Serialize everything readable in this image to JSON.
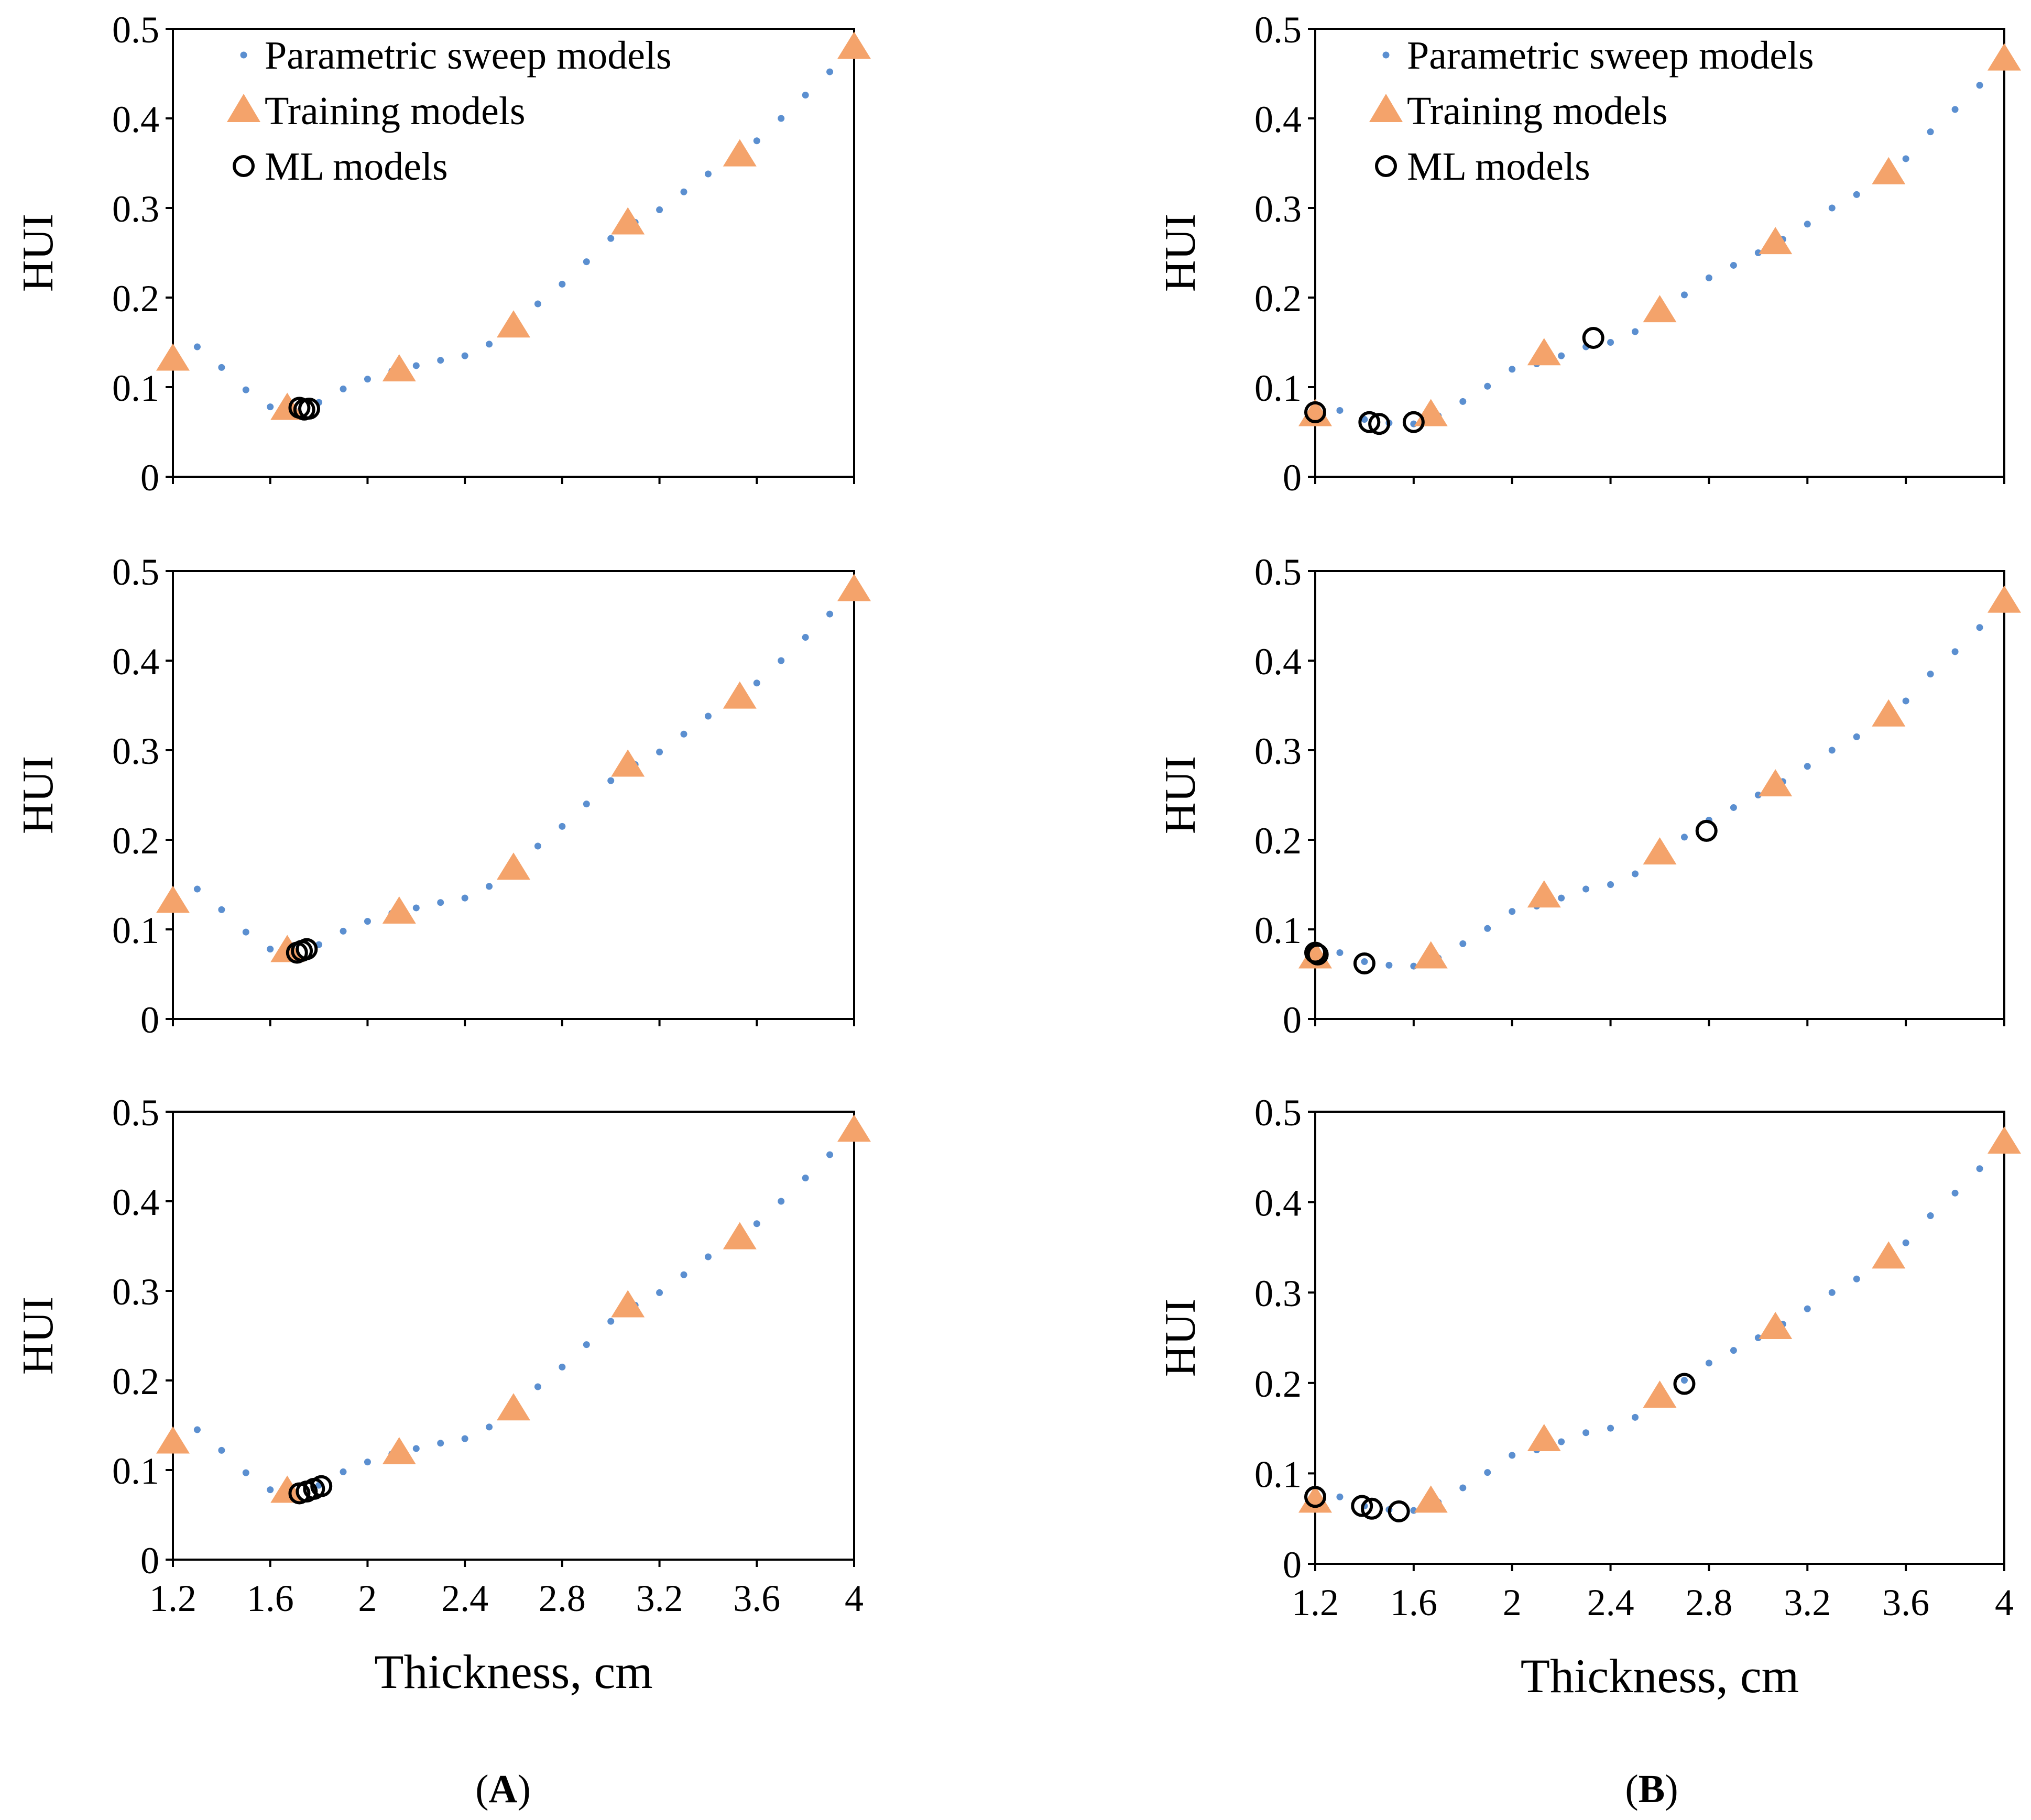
{
  "figure": {
    "panel_labels": [
      {
        "open": "(",
        "letter": "A",
        "close": ")"
      },
      {
        "open": "(",
        "letter": "B",
        "close": ")"
      }
    ]
  },
  "colors": {
    "sweep": "#5b8fd0",
    "training": "#f4a36b",
    "ml": "#000000",
    "axis": "#000000"
  },
  "chart_data": [
    {
      "type": "scatter",
      "panel": "A1",
      "ylabel": "HUI",
      "xlabel": "",
      "xlim": [
        1.2,
        4
      ],
      "ylim": [
        0,
        0.5
      ],
      "xticks": [
        "1.2",
        "1.6",
        "2",
        "2.4",
        "2.8",
        "3.2",
        "3.6",
        "4"
      ],
      "show_xticks": false,
      "yticks": [
        "0",
        "0.1",
        "0.2",
        "0.3",
        "0.4",
        "0.5"
      ],
      "legend": {
        "position": "top-left",
        "entries": [
          "Parametric sweep models",
          "Training models",
          "ML models"
        ]
      },
      "series": [
        {
          "name": "Parametric sweep models",
          "marker": "dot",
          "x": [
            1.2,
            1.3,
            1.4,
            1.5,
            1.6,
            1.7,
            1.8,
            1.9,
            2.0,
            2.1,
            2.2,
            2.3,
            2.4,
            2.5,
            2.6,
            2.7,
            2.8,
            2.9,
            3.0,
            3.1,
            3.2,
            3.3,
            3.4,
            3.5,
            3.6,
            3.7,
            3.8,
            3.9,
            4.0
          ],
          "y": [
            0.13,
            0.145,
            0.122,
            0.097,
            0.078,
            0.074,
            0.083,
            0.098,
            0.109,
            0.118,
            0.124,
            0.13,
            0.135,
            0.148,
            0.17,
            0.193,
            0.215,
            0.24,
            0.266,
            0.284,
            0.298,
            0.318,
            0.338,
            0.355,
            0.375,
            0.4,
            0.426,
            0.452,
            0.478
          ]
        },
        {
          "name": "Training models",
          "marker": "triangle",
          "x": [
            1.2,
            1.67,
            2.13,
            2.6,
            3.07,
            3.53,
            4.0
          ],
          "y": [
            0.13,
            0.075,
            0.118,
            0.167,
            0.282,
            0.358,
            0.478
          ]
        },
        {
          "name": "ML models",
          "marker": "circle",
          "x": [
            1.72,
            1.74,
            1.76
          ],
          "y": [
            0.077,
            0.075,
            0.076
          ]
        }
      ]
    },
    {
      "type": "scatter",
      "panel": "B1",
      "ylabel": "HUI",
      "xlabel": "",
      "xlim": [
        1.2,
        4
      ],
      "ylim": [
        0,
        0.5
      ],
      "xticks": [
        "1.2",
        "1.6",
        "2",
        "2.4",
        "2.8",
        "3.2",
        "3.6",
        "4"
      ],
      "show_xticks": false,
      "yticks": [
        "0",
        "0.1",
        "0.2",
        "0.3",
        "0.4",
        "0.5"
      ],
      "legend": {
        "position": "top-left",
        "entries": [
          "Parametric sweep models",
          "Training models",
          "ML models"
        ]
      },
      "series": [
        {
          "name": "Parametric sweep models",
          "marker": "dot",
          "x": [
            1.2,
            1.3,
            1.4,
            1.5,
            1.6,
            1.7,
            1.8,
            1.9,
            2.0,
            2.1,
            2.2,
            2.3,
            2.4,
            2.5,
            2.6,
            2.7,
            2.8,
            2.9,
            3.0,
            3.1,
            3.2,
            3.3,
            3.4,
            3.5,
            3.6,
            3.7,
            3.8,
            3.9,
            4.0
          ],
          "y": [
            0.074,
            0.074,
            0.064,
            0.06,
            0.059,
            0.068,
            0.084,
            0.101,
            0.12,
            0.126,
            0.135,
            0.145,
            0.15,
            0.162,
            0.182,
            0.203,
            0.222,
            0.236,
            0.25,
            0.265,
            0.282,
            0.3,
            0.315,
            0.333,
            0.355,
            0.385,
            0.41,
            0.437,
            0.465
          ]
        },
        {
          "name": "Training models",
          "marker": "triangle",
          "x": [
            1.2,
            1.67,
            2.13,
            2.6,
            3.07,
            3.53,
            4.0
          ],
          "y": [
            0.068,
            0.068,
            0.136,
            0.184,
            0.26,
            0.338,
            0.465
          ]
        },
        {
          "name": "ML models",
          "marker": "circle",
          "x": [
            1.2,
            1.42,
            1.46,
            1.6,
            2.33
          ],
          "y": [
            0.072,
            0.061,
            0.059,
            0.061,
            0.155
          ]
        }
      ]
    },
    {
      "type": "scatter",
      "panel": "A2",
      "ylabel": "HUI",
      "xlabel": "",
      "xlim": [
        1.2,
        4
      ],
      "ylim": [
        0,
        0.5
      ],
      "xticks": [
        "1.2",
        "1.6",
        "2",
        "2.4",
        "2.8",
        "3.2",
        "3.6",
        "4"
      ],
      "show_xticks": false,
      "yticks": [
        "0",
        "0.1",
        "0.2",
        "0.3",
        "0.4",
        "0.5"
      ],
      "series": [
        {
          "name": "Parametric sweep models",
          "marker": "dot",
          "x": [
            1.2,
            1.3,
            1.4,
            1.5,
            1.6,
            1.7,
            1.8,
            1.9,
            2.0,
            2.1,
            2.2,
            2.3,
            2.4,
            2.5,
            2.6,
            2.7,
            2.8,
            2.9,
            3.0,
            3.1,
            3.2,
            3.3,
            3.4,
            3.5,
            3.6,
            3.7,
            3.8,
            3.9,
            4.0
          ],
          "y": [
            0.13,
            0.145,
            0.122,
            0.097,
            0.078,
            0.074,
            0.083,
            0.098,
            0.109,
            0.118,
            0.124,
            0.13,
            0.135,
            0.148,
            0.17,
            0.193,
            0.215,
            0.24,
            0.266,
            0.284,
            0.298,
            0.318,
            0.338,
            0.355,
            0.375,
            0.4,
            0.426,
            0.452,
            0.478
          ]
        },
        {
          "name": "Training models",
          "marker": "triangle",
          "x": [
            1.2,
            1.67,
            2.13,
            2.6,
            3.07,
            3.53,
            4.0
          ],
          "y": [
            0.13,
            0.075,
            0.118,
            0.167,
            0.282,
            0.358,
            0.478
          ]
        },
        {
          "name": "ML models",
          "marker": "circle",
          "x": [
            1.71,
            1.73,
            1.75
          ],
          "y": [
            0.074,
            0.076,
            0.078
          ]
        }
      ]
    },
    {
      "type": "scatter",
      "panel": "B2",
      "ylabel": "HUI",
      "xlabel": "",
      "xlim": [
        1.2,
        4
      ],
      "ylim": [
        0,
        0.5
      ],
      "xticks": [
        "1.2",
        "1.6",
        "2",
        "2.4",
        "2.8",
        "3.2",
        "3.6",
        "4"
      ],
      "show_xticks": false,
      "yticks": [
        "0",
        "0.1",
        "0.2",
        "0.3",
        "0.4",
        "0.5"
      ],
      "series": [
        {
          "name": "Parametric sweep models",
          "marker": "dot",
          "x": [
            1.2,
            1.3,
            1.4,
            1.5,
            1.6,
            1.7,
            1.8,
            1.9,
            2.0,
            2.1,
            2.2,
            2.3,
            2.4,
            2.5,
            2.6,
            2.7,
            2.8,
            2.9,
            3.0,
            3.1,
            3.2,
            3.3,
            3.4,
            3.5,
            3.6,
            3.7,
            3.8,
            3.9,
            4.0
          ],
          "y": [
            0.074,
            0.074,
            0.064,
            0.06,
            0.059,
            0.068,
            0.084,
            0.101,
            0.12,
            0.126,
            0.135,
            0.145,
            0.15,
            0.162,
            0.182,
            0.203,
            0.222,
            0.236,
            0.25,
            0.265,
            0.282,
            0.3,
            0.315,
            0.333,
            0.355,
            0.385,
            0.41,
            0.437,
            0.465
          ]
        },
        {
          "name": "Training models",
          "marker": "triangle",
          "x": [
            1.2,
            1.67,
            2.13,
            2.6,
            3.07,
            3.53,
            4.0
          ],
          "y": [
            0.068,
            0.068,
            0.136,
            0.184,
            0.26,
            0.338,
            0.465
          ]
        },
        {
          "name": "ML models",
          "marker": "circle",
          "x": [
            1.2,
            1.21,
            1.4,
            2.79
          ],
          "y": [
            0.074,
            0.072,
            0.062,
            0.21
          ]
        }
      ]
    },
    {
      "type": "scatter",
      "panel": "A3",
      "ylabel": "HUI",
      "xlabel": "Thickness, cm",
      "xlim": [
        1.2,
        4
      ],
      "ylim": [
        0,
        0.5
      ],
      "xticks": [
        "1.2",
        "1.6",
        "2",
        "2.4",
        "2.8",
        "3.2",
        "3.6",
        "4"
      ],
      "show_xticks": true,
      "yticks": [
        "0",
        "0.1",
        "0.2",
        "0.3",
        "0.4",
        "0.5"
      ],
      "series": [
        {
          "name": "Parametric sweep models",
          "marker": "dot",
          "x": [
            1.2,
            1.3,
            1.4,
            1.5,
            1.6,
            1.7,
            1.8,
            1.9,
            2.0,
            2.1,
            2.2,
            2.3,
            2.4,
            2.5,
            2.6,
            2.7,
            2.8,
            2.9,
            3.0,
            3.1,
            3.2,
            3.3,
            3.4,
            3.5,
            3.6,
            3.7,
            3.8,
            3.9,
            4.0
          ],
          "y": [
            0.13,
            0.145,
            0.122,
            0.097,
            0.078,
            0.074,
            0.083,
            0.098,
            0.109,
            0.118,
            0.124,
            0.13,
            0.135,
            0.148,
            0.17,
            0.193,
            0.215,
            0.24,
            0.266,
            0.284,
            0.298,
            0.318,
            0.338,
            0.355,
            0.375,
            0.4,
            0.426,
            0.452,
            0.478
          ]
        },
        {
          "name": "Training models",
          "marker": "triangle",
          "x": [
            1.2,
            1.67,
            2.13,
            2.6,
            3.07,
            3.53,
            4.0
          ],
          "y": [
            0.13,
            0.075,
            0.118,
            0.167,
            0.282,
            0.358,
            0.478
          ]
        },
        {
          "name": "ML models",
          "marker": "circle",
          "x": [
            1.72,
            1.75,
            1.78,
            1.81
          ],
          "y": [
            0.074,
            0.076,
            0.079,
            0.082
          ]
        }
      ]
    },
    {
      "type": "scatter",
      "panel": "B3",
      "ylabel": "HUI",
      "xlabel": "Thickness, cm",
      "xlim": [
        1.2,
        4
      ],
      "ylim": [
        0,
        0.5
      ],
      "xticks": [
        "1.2",
        "1.6",
        "2",
        "2.4",
        "2.8",
        "3.2",
        "3.6",
        "4"
      ],
      "show_xticks": true,
      "yticks": [
        "0",
        "0.1",
        "0.2",
        "0.3",
        "0.4",
        "0.5"
      ],
      "series": [
        {
          "name": "Parametric sweep models",
          "marker": "dot",
          "x": [
            1.2,
            1.3,
            1.4,
            1.5,
            1.6,
            1.7,
            1.8,
            1.9,
            2.0,
            2.1,
            2.2,
            2.3,
            2.4,
            2.5,
            2.6,
            2.7,
            2.8,
            2.9,
            3.0,
            3.1,
            3.2,
            3.3,
            3.4,
            3.5,
            3.6,
            3.7,
            3.8,
            3.9,
            4.0
          ],
          "y": [
            0.074,
            0.074,
            0.064,
            0.06,
            0.059,
            0.068,
            0.084,
            0.101,
            0.12,
            0.126,
            0.135,
            0.145,
            0.15,
            0.162,
            0.182,
            0.203,
            0.222,
            0.236,
            0.25,
            0.265,
            0.282,
            0.3,
            0.315,
            0.333,
            0.355,
            0.385,
            0.41,
            0.437,
            0.465
          ]
        },
        {
          "name": "Training models",
          "marker": "triangle",
          "x": [
            1.2,
            1.67,
            2.13,
            2.6,
            3.07,
            3.53,
            4.0
          ],
          "y": [
            0.068,
            0.068,
            0.136,
            0.184,
            0.26,
            0.338,
            0.465
          ]
        },
        {
          "name": "ML models",
          "marker": "circle",
          "x": [
            1.2,
            1.39,
            1.43,
            1.54,
            2.7
          ],
          "y": [
            0.074,
            0.064,
            0.061,
            0.058,
            0.199
          ]
        }
      ]
    }
  ]
}
